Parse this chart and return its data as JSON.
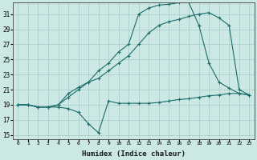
{
  "xlabel": "Humidex (Indice chaleur)",
  "bg_color": "#cce8e4",
  "line_color": "#1a6b6b",
  "grid_color": "#aacfcb",
  "xlim": [
    -0.5,
    23.5
  ],
  "ylim": [
    14.5,
    32.5
  ],
  "yticks": [
    15,
    17,
    19,
    21,
    23,
    25,
    27,
    29,
    31
  ],
  "xticks": [
    0,
    1,
    2,
    3,
    4,
    5,
    6,
    7,
    8,
    9,
    10,
    11,
    12,
    13,
    14,
    15,
    16,
    17,
    18,
    19,
    20,
    21,
    22,
    23
  ],
  "line1_x": [
    0,
    1,
    2,
    3,
    4,
    5,
    6,
    7,
    8,
    9,
    10,
    11,
    12,
    13,
    14,
    15,
    16,
    17,
    18,
    19,
    20,
    21,
    22,
    23
  ],
  "line1_y": [
    19,
    19,
    18.7,
    18.7,
    18.7,
    18.5,
    18.0,
    16.5,
    15.3,
    19.5,
    19.2,
    19.2,
    19.2,
    19.2,
    19.3,
    19.5,
    19.7,
    19.8,
    20.0,
    20.2,
    20.3,
    20.5,
    20.5,
    20.3
  ],
  "line2_x": [
    0,
    1,
    2,
    3,
    4,
    5,
    6,
    7,
    8,
    9,
    10,
    11,
    12,
    13,
    14,
    15,
    16,
    17,
    18,
    19,
    20,
    21,
    22,
    23
  ],
  "line2_y": [
    19,
    19,
    18.7,
    18.7,
    19.0,
    20.5,
    21.3,
    22.0,
    23.5,
    24.5,
    26.0,
    27.0,
    31.0,
    31.8,
    32.2,
    32.3,
    32.5,
    32.5,
    29.5,
    24.5,
    22.0,
    21.2,
    20.5,
    20.3
  ],
  "line3_x": [
    0,
    1,
    2,
    3,
    4,
    5,
    6,
    7,
    8,
    9,
    10,
    11,
    12,
    13,
    14,
    15,
    16,
    17,
    18,
    19,
    20,
    21,
    22,
    23
  ],
  "line3_y": [
    19,
    19,
    18.7,
    18.7,
    19.0,
    20.0,
    21.0,
    22.0,
    22.5,
    23.5,
    24.5,
    25.5,
    27.0,
    28.5,
    29.5,
    30.0,
    30.3,
    30.7,
    31.0,
    31.2,
    30.5,
    29.5,
    21.0,
    20.3
  ]
}
